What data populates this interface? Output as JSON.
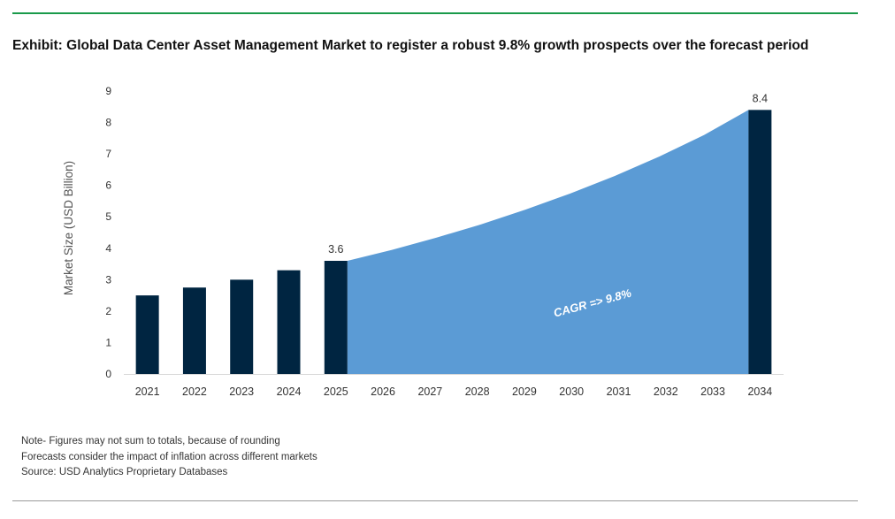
{
  "title": "Exhibit: Global Data Center Asset Management Market to register a robust 9.8% growth prospects over the forecast period",
  "colors": {
    "bar": "#002541",
    "area": "#5b9bd5",
    "title_rule": "#1a9a4a",
    "footer_rule": "#9a9a9a"
  },
  "chart_data": {
    "type": "bar",
    "categories": [
      "2021",
      "2022",
      "2023",
      "2024",
      "2025",
      "2026",
      "2027",
      "2028",
      "2029",
      "2030",
      "2031",
      "2032",
      "2033",
      "2034"
    ],
    "series": [
      {
        "values": [
          2.5,
          2.75,
          3.0,
          3.3,
          3.6,
          null,
          null,
          null,
          null,
          null,
          null,
          null,
          null,
          8.4
        ]
      }
    ],
    "area_curve": {
      "from": "2025",
      "to": "2034",
      "values": [
        3.6,
        3.95,
        4.34,
        4.76,
        5.23,
        5.74,
        6.3,
        6.92,
        7.6,
        8.4
      ]
    },
    "data_labels": [
      {
        "category": "2025",
        "text": "3.6"
      },
      {
        "category": "2034",
        "text": "8.4"
      }
    ],
    "annotation": "CAGR => 9.8%",
    "ylabel": "Market Size (USD Billion)",
    "xlabel": "",
    "ylim": [
      0,
      9
    ],
    "yticks": [
      0,
      1,
      2,
      3,
      4,
      5,
      6,
      7,
      8,
      9
    ],
    "grid": false,
    "legend": "none"
  },
  "notes": [
    "Note- Figures may not sum to totals, because of rounding",
    "Forecasts consider the impact of inflation across different markets",
    "Source: USD Analytics Proprietary Databases"
  ]
}
